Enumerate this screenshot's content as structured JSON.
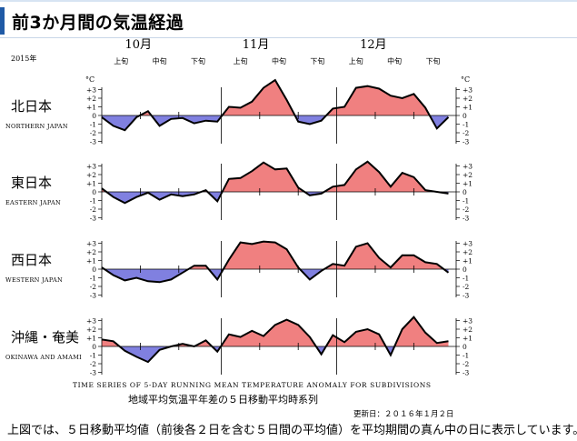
{
  "page": {
    "title": "前3か月間の気温経過"
  },
  "chart_data": {
    "type": "area",
    "year_label": "2015年",
    "months": [
      "10月",
      "11月",
      "12月"
    ],
    "dekads": [
      "上旬",
      "中旬",
      "下旬"
    ],
    "unit": "°C",
    "ylim": [
      -3,
      3
    ],
    "yticks": [
      "+3",
      "+2",
      "+1",
      "0",
      "-1",
      "-2",
      "-3"
    ],
    "x_days_from_oct1": [
      0,
      3,
      6,
      9,
      12,
      15,
      18,
      21,
      24,
      27,
      30,
      33,
      36,
      39,
      42,
      45,
      48,
      51,
      54,
      57,
      60,
      63,
      66,
      69,
      72,
      75,
      78,
      81,
      84,
      87,
      90
    ],
    "positive_color": "#f08080",
    "negative_color": "#8080e0",
    "series": [
      {
        "name": "北日本",
        "name_en": "NORTHERN JAPAN",
        "values": [
          -0.2,
          -1.2,
          -1.7,
          -0.2,
          0.5,
          -1.2,
          -0.4,
          -0.3,
          -0.9,
          -0.6,
          -0.7,
          1.0,
          0.9,
          1.6,
          3.2,
          4.1,
          1.8,
          -0.7,
          -1.0,
          -0.6,
          0.8,
          1.0,
          3.2,
          3.4,
          3.1,
          2.3,
          2.0,
          2.5,
          0.9,
          -1.5,
          -0.2
        ]
      },
      {
        "name": "東日本",
        "name_en": "EASTERN JAPAN",
        "values": [
          0.4,
          -0.6,
          -1.3,
          -0.6,
          -0.1,
          -0.9,
          -0.3,
          -0.5,
          -0.3,
          0.2,
          -1.1,
          1.5,
          1.6,
          2.4,
          3.4,
          2.6,
          2.7,
          0.5,
          -0.4,
          -0.2,
          0.6,
          0.8,
          2.6,
          3.5,
          2.3,
          0.6,
          2.2,
          1.7,
          0.2,
          0.0,
          -0.2
        ]
      },
      {
        "name": "西日本",
        "name_en": "WESTERN JAPAN",
        "values": [
          0.2,
          -0.7,
          -1.3,
          -1.0,
          -1.4,
          -1.5,
          -1.2,
          -0.4,
          0.4,
          0.4,
          -1.2,
          1.1,
          3.1,
          2.9,
          3.2,
          3.1,
          2.3,
          0.2,
          -1.2,
          -0.2,
          0.6,
          0.4,
          2.6,
          3.0,
          1.3,
          0.2,
          1.6,
          1.6,
          0.8,
          0.6,
          -0.4
        ]
      },
      {
        "name": "沖縄・奄美",
        "name_en": "OKINAWA AND AMAMI",
        "values": [
          0.8,
          0.6,
          -0.5,
          -1.2,
          -1.8,
          -0.4,
          0.0,
          0.3,
          0.0,
          0.7,
          -0.6,
          1.4,
          1.1,
          1.8,
          1.2,
          2.5,
          3.1,
          2.5,
          1.1,
          -0.9,
          1.3,
          0.5,
          1.7,
          2.0,
          1.4,
          -1.0,
          2.0,
          3.4,
          1.6,
          0.4,
          0.6
        ]
      }
    ],
    "caption_en": "TIME SERIES OF 5-DAY RUNNING MEAN TEMPERATURE ANOMALY FOR SUBDIVISIONS",
    "caption_jp": "地域平均気温平年差の５日移動平均時系列",
    "updated": "更新日：２０１６年１月２日"
  },
  "footnote": "上図では、５日移動平均値（前後各２日を含む５日間の平均値）を平均期間の真ん中の日に表示しています。"
}
